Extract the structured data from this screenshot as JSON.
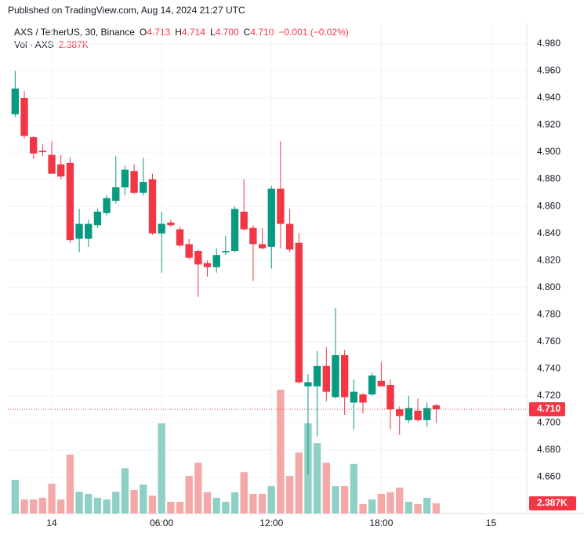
{
  "header": "Published on TradingView.com, Aug 14, 2024 21:27 UTC",
  "legend": {
    "symbol": "AXS / TetherUS, 30, Binance",
    "o_label": "O",
    "o": "4.713",
    "h_label": "H",
    "h": "4.714",
    "l_label": "L",
    "l": "4.700",
    "c_label": "C",
    "c": "4.710",
    "change": "−0.001 (−0.02%)",
    "vol_label": "Vol · AXS",
    "vol": "2.387K"
  },
  "chart_data": {
    "type": "candlestick",
    "up_color": "#089981",
    "down_color": "#f23645",
    "open": [
      4.928,
      4.94,
      4.911,
      4.901,
      4.898,
      4.891,
      4.892,
      4.836,
      4.836,
      4.846,
      4.855,
      4.864,
      4.874,
      4.886,
      4.87,
      4.88,
      4.84,
      4.848,
      4.843,
      4.832,
      4.827,
      4.818,
      4.815,
      4.826,
      4.827,
      4.856,
      4.844,
      4.832,
      4.83,
      4.873,
      4.847,
      4.833,
      4.727,
      4.727,
      4.742,
      4.719,
      4.75,
      4.715,
      4.721,
      4.721,
      4.731,
      4.728,
      4.71,
      4.702,
      4.709,
      4.702,
      4.713
    ],
    "high": [
      4.96,
      4.945,
      4.912,
      4.906,
      4.908,
      4.898,
      4.896,
      4.858,
      4.85,
      4.858,
      4.868,
      4.897,
      4.89,
      4.891,
      4.896,
      4.884,
      4.856,
      4.85,
      4.845,
      4.836,
      4.828,
      4.82,
      4.829,
      4.838,
      4.86,
      4.88,
      4.846,
      4.844,
      4.875,
      4.908,
      4.858,
      4.84,
      4.736,
      4.753,
      4.756,
      4.785,
      4.754,
      4.732,
      4.722,
      4.737,
      4.745,
      4.732,
      4.712,
      4.72,
      4.718,
      4.715,
      4.714
    ],
    "low": [
      4.926,
      4.91,
      4.895,
      4.897,
      4.884,
      4.88,
      4.833,
      4.826,
      4.83,
      4.844,
      4.853,
      4.862,
      4.868,
      4.869,
      4.868,
      4.839,
      4.811,
      4.845,
      4.83,
      4.821,
      4.793,
      4.808,
      4.811,
      4.824,
      4.826,
      4.842,
      4.805,
      4.828,
      4.814,
      4.829,
      4.826,
      4.729,
      4.662,
      4.69,
      4.716,
      4.718,
      4.706,
      4.695,
      4.707,
      4.72,
      4.73,
      4.695,
      4.691,
      4.7,
      4.701,
      4.697,
      4.7
    ],
    "close": [
      4.947,
      4.912,
      4.899,
      4.9,
      4.884,
      4.882,
      4.835,
      4.847,
      4.847,
      4.856,
      4.866,
      4.874,
      4.887,
      4.87,
      4.878,
      4.84,
      4.847,
      4.846,
      4.831,
      4.822,
      4.817,
      4.815,
      4.824,
      4.827,
      4.858,
      4.843,
      4.832,
      4.829,
      4.873,
      4.847,
      4.828,
      4.73,
      4.73,
      4.742,
      4.723,
      4.75,
      4.719,
      4.723,
      4.715,
      4.735,
      4.727,
      4.71,
      4.705,
      4.711,
      4.702,
      4.711,
      4.71
    ],
    "volume": {
      "up_color": "#8fd0c6",
      "down_color": "#f5a8a8",
      "values": [
        7900,
        3300,
        3300,
        3700,
        7000,
        3300,
        13800,
        5100,
        4600,
        3700,
        3300,
        5100,
        10600,
        5500,
        6800,
        4200,
        21100,
        2750,
        2750,
        8800,
        11900,
        5000,
        3700,
        2750,
        5000,
        9700,
        4600,
        4600,
        6400,
        29000,
        8800,
        14300,
        21100,
        16500,
        11900,
        6400,
        6400,
        11600,
        2200,
        3300,
        4600,
        5000,
        6100,
        2750,
        2200,
        3700,
        2387
      ],
      "last_value_label": "2.387K"
    },
    "last_price_label": "4.710",
    "ylim": [
      4.633,
      4.995
    ],
    "yticks": [
      {
        "value": 4.66,
        "label": "4.660"
      },
      {
        "value": 4.68,
        "label": "4.680"
      },
      {
        "value": 4.7,
        "label": "4.700"
      },
      {
        "value": 4.72,
        "label": "4.720"
      },
      {
        "value": 4.74,
        "label": "4.740"
      },
      {
        "value": 4.76,
        "label": "4.760"
      },
      {
        "value": 4.78,
        "label": "4.780"
      },
      {
        "value": 4.8,
        "label": "4.800"
      },
      {
        "value": 4.82,
        "label": "4.820"
      },
      {
        "value": 4.84,
        "label": "4.840"
      },
      {
        "value": 4.86,
        "label": "4.860"
      },
      {
        "value": 4.88,
        "label": "4.880"
      },
      {
        "value": 4.9,
        "label": "4.900"
      },
      {
        "value": 4.92,
        "label": "4.920"
      },
      {
        "value": 4.94,
        "label": "4.940"
      },
      {
        "value": 4.96,
        "label": "4.960"
      },
      {
        "value": 4.98,
        "label": "4.980"
      }
    ],
    "xlim": [
      -0.8,
      55.9
    ],
    "xticks": [
      {
        "value": 4,
        "label": "14"
      },
      {
        "value": 16,
        "label": "06:00"
      },
      {
        "value": 28,
        "label": "12:00"
      },
      {
        "value": 40,
        "label": "18:00"
      },
      {
        "value": 52,
        "label": "15"
      }
    ],
    "grid": true
  }
}
